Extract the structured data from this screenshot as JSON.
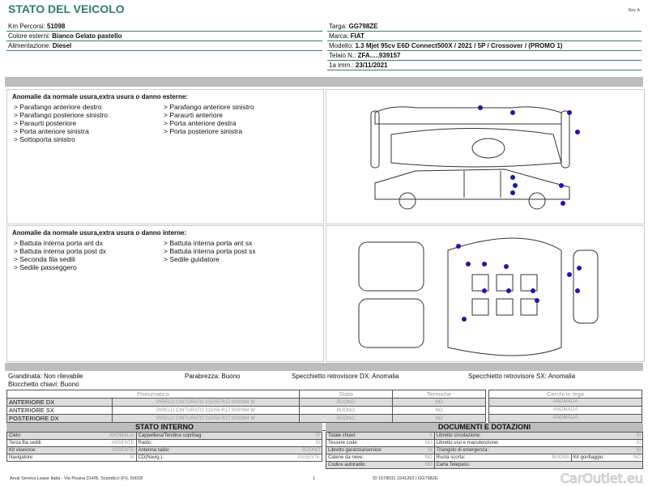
{
  "header": {
    "title": "STATO DEL VEICOLO",
    "rev": "Rev. A"
  },
  "vehicle_left": [
    {
      "label": "Km Percorsi: ",
      "value": "51098"
    },
    {
      "label": "Colore esterni: ",
      "value": "Bianco Gelato pastello"
    },
    {
      "label": "Alimentazione: ",
      "value": "Diesel"
    }
  ],
  "vehicle_right": [
    {
      "label": "Targa: ",
      "value": "GG798ZE"
    },
    {
      "label": "Marca: ",
      "value": "FIAT"
    },
    {
      "label": "Modello: ",
      "value": "1.3 Mjet 95cv E6D Connect500X / 2021 / 5P / Crossover / (PROMO 1)"
    },
    {
      "label": "Telaio N.: ",
      "value": "ZFA.....939157"
    },
    {
      "label": "1a imm.: ",
      "value": "23/11/2021"
    }
  ],
  "exterior": {
    "heading": "Anomalie da normale usura,extra usura o danno esterne:",
    "col1": [
      "> Parafango anteriore destro",
      "> Parafango posteriore sinistro",
      "> Paraurti posteriore",
      "> Porta anteriore sinistra",
      "> Sottoporta sinistro"
    ],
    "col2": [
      "> Parafango anteriore sinistro",
      "> Paraurti anteriore",
      "> Porta anteriore destra",
      "> Porta posteriore sinistra"
    ]
  },
  "interior": {
    "heading": "Anomalie da normale usura,extra usura o danno interne:",
    "col1": [
      "> Battuta interna porta ant dx",
      "> Battuta interna porta post dx",
      "> Seconda fila sedili",
      "> Sedile passeggero"
    ],
    "col2": [
      "> Battuta interna porta ant sx",
      "> Battuta interna porta post sx",
      "> Sedile guidatore"
    ]
  },
  "summary": {
    "grandinata": {
      "label": "Grandinata: ",
      "value": "Non rilevabile"
    },
    "parabrezza": {
      "label": "Parabrezza: ",
      "value": "Buono"
    },
    "specchio_dx": {
      "label": "Specchietto retrovisore DX: ",
      "value": "Anomalia"
    },
    "specchio_sx": {
      "label": "Specchietto retrovisore SX: ",
      "value": "Anomalia"
    },
    "blocchetto": {
      "label": "Blocchetto chiavi: ",
      "value": "Buono"
    }
  },
  "tires": {
    "headers": [
      "Pneumatico",
      "Stato",
      "Termiche"
    ],
    "cerchi_header": "Cerchi in lega",
    "rows": [
      {
        "pos": "ANTERIORE DX",
        "model": "PIRELLI  CINTURATO  215/55 R17 000/094 W",
        "stato": "BUONO",
        "termiche": "NO",
        "cerchi": "ANOMALIA"
      },
      {
        "pos": "ANTERIORE SX",
        "model": "PIRELLI  CINTURATO  215/55 R17 000/094 W",
        "stato": "BUONO",
        "termiche": "NO",
        "cerchi": "ANOMALIA"
      },
      {
        "pos": "POSTERIORE DX",
        "model": "PIRELLI  CINTURATO  215/55 R17 000/094 W",
        "stato": "BUONO",
        "termiche": "NO",
        "cerchi": "ANOMALIA"
      },
      {
        "pos": "POSTERIORE SX",
        "model": "PIRELLI  CINTURATO  215/55 R17 000/094 W",
        "stato": "BUONO",
        "termiche": "NO",
        "cerchi": "ANOMALIA"
      }
    ]
  },
  "stato_interno": {
    "title": "STATO INTERNO",
    "rows": [
      [
        {
          "k": "Cielo:",
          "v": "ANOMALIA"
        },
        {
          "k": "Cappelliera/Tendina copribag:",
          "v": "SI"
        }
      ],
      [
        {
          "k": "Terza fila sedili:",
          "v": "ASSENTE"
        },
        {
          "k": "Radio:",
          "v": "SI"
        }
      ],
      [
        {
          "k": "Kit vivavoce:",
          "v": "ASSENTE"
        },
        {
          "k": "Antenna radio:",
          "v": "BUONO"
        }
      ],
      [
        {
          "k": "Navigatore:",
          "v": "SI"
        },
        {
          "k": "CD(Navig.):",
          "v": "ASSENTE"
        }
      ]
    ]
  },
  "documenti": {
    "title": "DOCUMENTI E DOTAZIONI",
    "rows": [
      [
        {
          "k": "Totale chiavi:",
          "v": "2"
        },
        {
          "k": "Libretto circolazione:",
          "v": "SI"
        }
      ],
      [
        {
          "k": "Tessere code:",
          "v": "NO"
        },
        {
          "k": "Libretto uso e manutenzione:",
          "v": "SI"
        }
      ],
      [
        {
          "k": "Libretto garanzia/service:",
          "v": "SI"
        },
        {
          "k": "Triangolo di emergenza:",
          "v": "SI"
        }
      ],
      [
        {
          "k": "Catene da neve:",
          "v": "NO"
        },
        {
          "k": "Ruota scorta:",
          "v": "BUONA"
        },
        {
          "k": "Kit gonfiaggio:",
          "v": "NO"
        }
      ],
      [
        {
          "k": "Codice autoradio:",
          "v": "NO"
        },
        {
          "k": "Carta Telepass:",
          "v": ""
        }
      ]
    ]
  },
  "footer": {
    "address": "Arval Service Lease Italia - Via Pisana 314/B, Scandicci (FI), 50018",
    "page": "1",
    "code": "ID 1578031.1541263 | GG798ZE"
  },
  "watermark": "CarOutlet.eu",
  "colors": {
    "title": "#2f7d6e",
    "damage_dot": "#1a1aa8",
    "header_bar": "#bdbdbd"
  }
}
